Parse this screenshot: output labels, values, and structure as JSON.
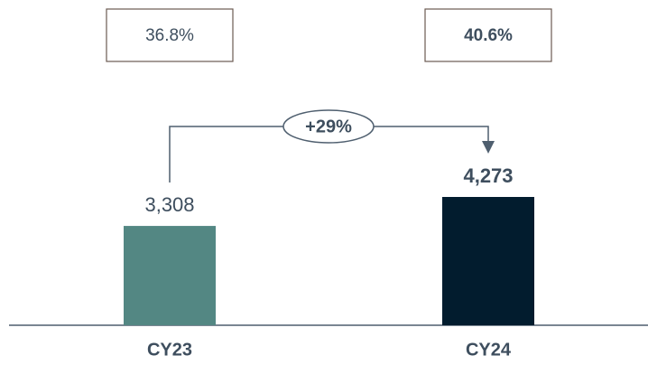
{
  "chart_data": {
    "type": "bar",
    "categories": [
      "CY23",
      "CY24"
    ],
    "values": [
      3308,
      4273
    ],
    "value_labels": [
      "3,308",
      "4,273"
    ],
    "colors": [
      "#538783",
      "#021c2e"
    ],
    "box_labels": [
      "36.8%",
      "40.6%"
    ],
    "growth_label": "+29%"
  }
}
